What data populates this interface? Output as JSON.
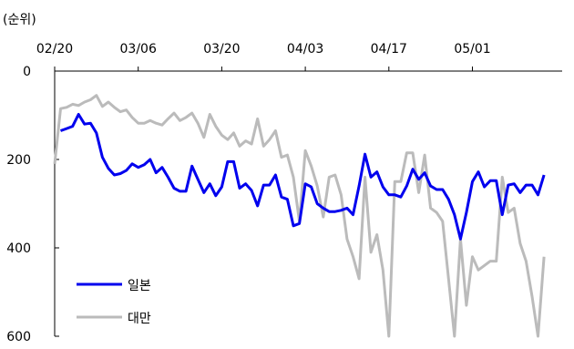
{
  "chart_data": {
    "type": "line",
    "unit_label": "(순위)",
    "x_tick_labels": [
      "02/20",
      "03/06",
      "03/20",
      "04/03",
      "04/17",
      "05/01"
    ],
    "y_tick_labels": [
      "0",
      "200",
      "400",
      "600"
    ],
    "ylim": [
      0,
      600
    ],
    "y_inverted": true,
    "grid": false,
    "legend_position": "bottom-left",
    "series": [
      {
        "name": "일본",
        "color": "#0000ee",
        "values": [
          [
            1,
            135
          ],
          [
            2,
            130
          ],
          [
            3,
            125
          ],
          [
            4,
            98
          ],
          [
            5,
            120
          ],
          [
            6,
            118
          ],
          [
            7,
            140
          ],
          [
            8,
            195
          ],
          [
            9,
            220
          ],
          [
            10,
            235
          ],
          [
            11,
            232
          ],
          [
            12,
            225
          ],
          [
            13,
            210
          ],
          [
            14,
            218
          ],
          [
            15,
            212
          ],
          [
            16,
            200
          ],
          [
            17,
            230
          ],
          [
            18,
            218
          ],
          [
            19,
            240
          ],
          [
            20,
            265
          ],
          [
            21,
            272
          ],
          [
            22,
            272
          ],
          [
            23,
            215
          ],
          [
            24,
            245
          ],
          [
            25,
            275
          ],
          [
            26,
            255
          ],
          [
            27,
            282
          ],
          [
            28,
            262
          ],
          [
            29,
            205
          ],
          [
            30,
            205
          ],
          [
            31,
            265
          ],
          [
            32,
            255
          ],
          [
            33,
            270
          ],
          [
            34,
            305
          ],
          [
            35,
            258
          ],
          [
            36,
            258
          ],
          [
            37,
            235
          ],
          [
            38,
            285
          ],
          [
            39,
            290
          ],
          [
            40,
            350
          ],
          [
            41,
            345
          ],
          [
            42,
            255
          ],
          [
            43,
            262
          ],
          [
            44,
            300
          ],
          [
            45,
            310
          ],
          [
            46,
            318
          ],
          [
            47,
            318
          ],
          [
            48,
            315
          ],
          [
            49,
            310
          ],
          [
            50,
            325
          ],
          [
            51,
            260
          ],
          [
            52,
            188
          ],
          [
            53,
            240
          ],
          [
            54,
            228
          ],
          [
            55,
            262
          ],
          [
            56,
            280
          ],
          [
            57,
            280
          ],
          [
            58,
            285
          ],
          [
            59,
            260
          ],
          [
            60,
            222
          ],
          [
            61,
            245
          ],
          [
            62,
            230
          ],
          [
            63,
            260
          ],
          [
            64,
            268
          ],
          [
            65,
            268
          ],
          [
            66,
            290
          ],
          [
            67,
            325
          ],
          [
            68,
            380
          ],
          [
            69,
            320
          ],
          [
            70,
            250
          ],
          [
            71,
            228
          ],
          [
            72,
            262
          ],
          [
            73,
            248
          ],
          [
            74,
            248
          ],
          [
            75,
            325
          ],
          [
            76,
            258
          ],
          [
            77,
            255
          ],
          [
            78,
            275
          ],
          [
            79,
            258
          ],
          [
            80,
            258
          ],
          [
            81,
            280
          ],
          [
            82,
            235
          ]
        ]
      },
      {
        "name": "대만",
        "color": "#bbbbbb",
        "values": [
          [
            0,
            210
          ],
          [
            1,
            85
          ],
          [
            2,
            82
          ],
          [
            3,
            75
          ],
          [
            4,
            78
          ],
          [
            5,
            70
          ],
          [
            6,
            65
          ],
          [
            7,
            55
          ],
          [
            8,
            80
          ],
          [
            9,
            70
          ],
          [
            10,
            82
          ],
          [
            11,
            92
          ],
          [
            12,
            88
          ],
          [
            13,
            105
          ],
          [
            14,
            118
          ],
          [
            15,
            118
          ],
          [
            16,
            112
          ],
          [
            17,
            118
          ],
          [
            18,
            122
          ],
          [
            19,
            108
          ],
          [
            20,
            95
          ],
          [
            21,
            112
          ],
          [
            22,
            105
          ],
          [
            23,
            95
          ],
          [
            24,
            118
          ],
          [
            25,
            150
          ],
          [
            26,
            98
          ],
          [
            27,
            125
          ],
          [
            28,
            145
          ],
          [
            29,
            155
          ],
          [
            30,
            140
          ],
          [
            31,
            170
          ],
          [
            32,
            158
          ],
          [
            33,
            165
          ],
          [
            34,
            108
          ],
          [
            35,
            170
          ],
          [
            36,
            155
          ],
          [
            37,
            135
          ],
          [
            38,
            195
          ],
          [
            39,
            190
          ],
          [
            40,
            240
          ],
          [
            41,
            340
          ],
          [
            42,
            180
          ],
          [
            43,
            215
          ],
          [
            44,
            260
          ],
          [
            45,
            330
          ],
          [
            46,
            240
          ],
          [
            47,
            235
          ],
          [
            48,
            280
          ],
          [
            49,
            380
          ],
          [
            50,
            420
          ],
          [
            51,
            470
          ],
          [
            52,
            240
          ],
          [
            53,
            410
          ],
          [
            54,
            370
          ],
          [
            55,
            450
          ],
          [
            56,
            600
          ],
          [
            57,
            250
          ],
          [
            58,
            250
          ],
          [
            59,
            185
          ],
          [
            60,
            185
          ],
          [
            61,
            275
          ],
          [
            62,
            190
          ],
          [
            63,
            310
          ],
          [
            64,
            320
          ],
          [
            65,
            340
          ],
          [
            66,
            470
          ],
          [
            67,
            600
          ],
          [
            68,
            380
          ],
          [
            69,
            530
          ],
          [
            70,
            420
          ],
          [
            71,
            450
          ],
          [
            72,
            440
          ],
          [
            73,
            430
          ],
          [
            74,
            430
          ],
          [
            75,
            240
          ],
          [
            76,
            320
          ],
          [
            77,
            310
          ],
          [
            78,
            390
          ],
          [
            79,
            430
          ],
          [
            80,
            510
          ],
          [
            81,
            600
          ],
          [
            82,
            420
          ]
        ]
      }
    ]
  }
}
